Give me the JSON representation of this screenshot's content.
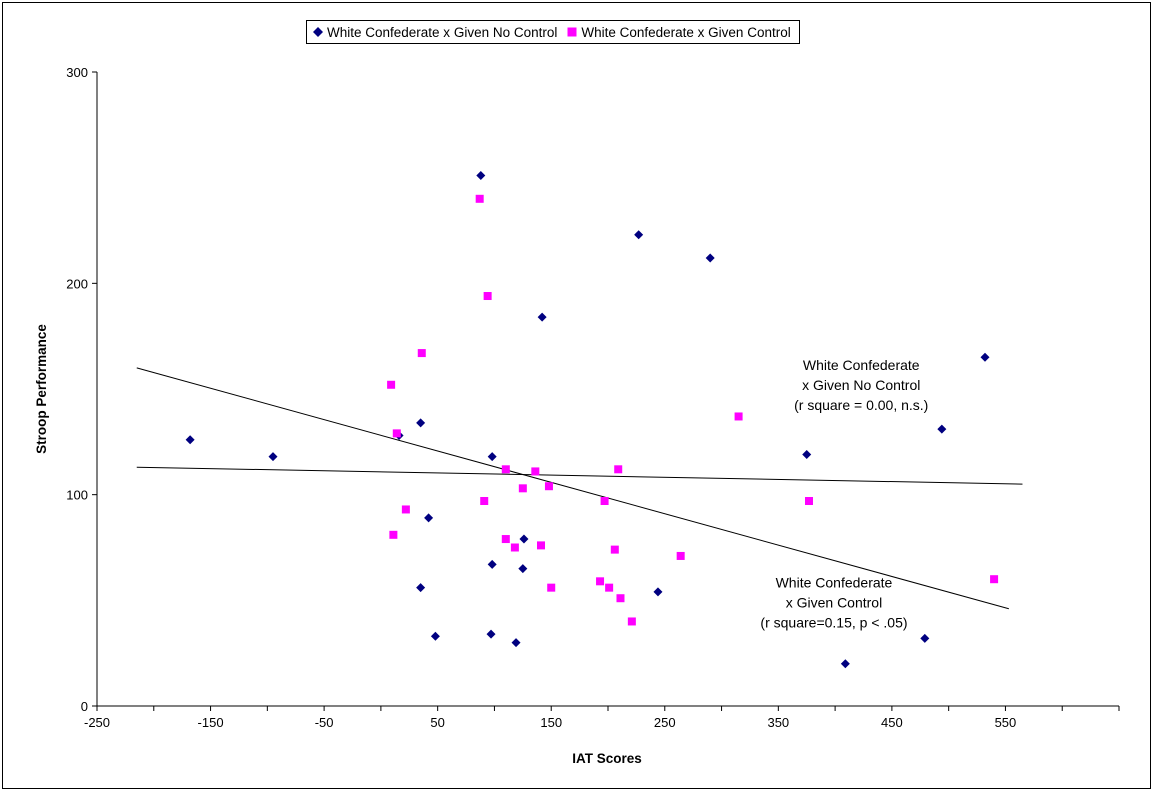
{
  "chart_data": {
    "type": "scatter",
    "title": "",
    "xlabel": "IAT Scores",
    "ylabel": "Stroop Performance",
    "xlim": [
      -250,
      650
    ],
    "ylim": [
      0,
      300
    ],
    "x_ticks": [
      "-250",
      "-150",
      "-50",
      "50",
      "150",
      "250",
      "350",
      "450",
      "550"
    ],
    "y_ticks": [
      "0",
      "100",
      "200",
      "300"
    ],
    "grid": false,
    "legend_position": "top-center",
    "series": [
      {
        "name": "White Confederate x Given No Control",
        "marker": "diamond",
        "color": "#000080",
        "points": [
          [
            -168,
            126
          ],
          [
            -95,
            118
          ],
          [
            16,
            128
          ],
          [
            35,
            134
          ],
          [
            42,
            89
          ],
          [
            35,
            56
          ],
          [
            48,
            33
          ],
          [
            88,
            251
          ],
          [
            98,
            118
          ],
          [
            98,
            67
          ],
          [
            97,
            34
          ],
          [
            119,
            30
          ],
          [
            126,
            79
          ],
          [
            125,
            65
          ],
          [
            142,
            184
          ],
          [
            227,
            223
          ],
          [
            244,
            54
          ],
          [
            290,
            212
          ],
          [
            375,
            119
          ],
          [
            409,
            20
          ],
          [
            479,
            32
          ],
          [
            494,
            131
          ],
          [
            532,
            165
          ]
        ]
      },
      {
        "name": "White Confederate x Given Control",
        "marker": "square",
        "color": "#FF00FF",
        "points": [
          [
            87,
            240
          ],
          [
            94,
            194
          ],
          [
            36,
            167
          ],
          [
            9,
            152
          ],
          [
            14,
            129
          ],
          [
            110,
            112
          ],
          [
            136,
            111
          ],
          [
            209,
            112
          ],
          [
            148,
            104
          ],
          [
            125,
            103
          ],
          [
            91,
            97
          ],
          [
            197,
            97
          ],
          [
            315,
            137
          ],
          [
            377,
            97
          ],
          [
            22,
            93
          ],
          [
            11,
            81
          ],
          [
            110,
            79
          ],
          [
            118,
            75
          ],
          [
            141,
            76
          ],
          [
            206,
            74
          ],
          [
            264,
            71
          ],
          [
            150,
            56
          ],
          [
            193,
            59
          ],
          [
            201,
            56
          ],
          [
            211,
            51
          ],
          [
            221,
            40
          ],
          [
            540,
            60
          ]
        ]
      }
    ],
    "trendlines": [
      {
        "series": "White Confederate x Given No Control",
        "x": [
          -215,
          565
        ],
        "y": [
          113,
          105
        ]
      },
      {
        "series": "White Confederate x Given Control",
        "x": [
          -215,
          553
        ],
        "y": [
          160,
          46
        ]
      }
    ],
    "annotations": [
      {
        "lines": [
          "White Confederate",
          "x Given No Control",
          "(r square = 0.00, n.s.)"
        ],
        "x": 423,
        "y": 159
      },
      {
        "lines": [
          "White Confederate",
          "x Given Control",
          "(r square=0.15, p < .05)"
        ],
        "x": 399,
        "y": 56
      }
    ]
  }
}
